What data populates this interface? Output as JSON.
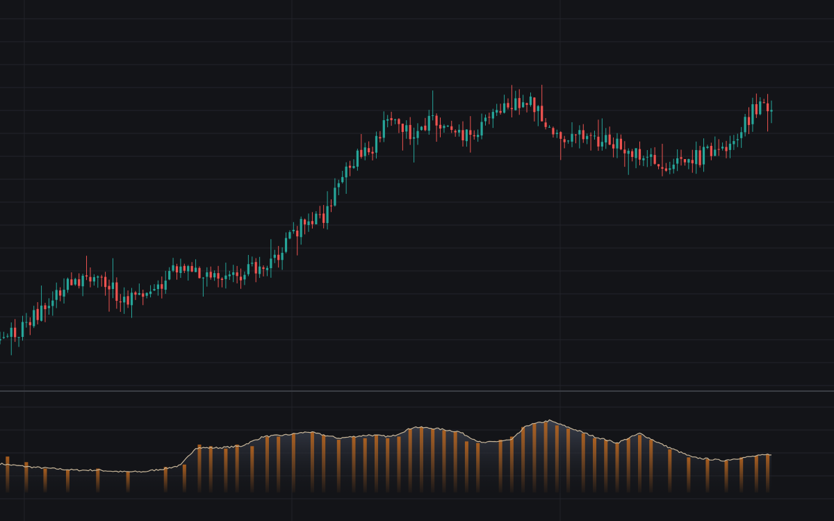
{
  "theme": {
    "background": "#131418",
    "grid": "#23252b",
    "separator": "#3a3d44",
    "up_color": "#26a69a",
    "down_color": "#ef5350",
    "indicator_line": "#c9b79a",
    "indicator_fill_top": "#3c4250",
    "indicator_fill_bottom": "#141519",
    "indicator_bar_color": "#b8651e"
  },
  "chart_data": [
    {
      "type": "candlestick",
      "title": "",
      "xlabel": "",
      "ylabel": "",
      "grid": true,
      "ylim": [
        0,
        100
      ],
      "series": [
        {
          "x_range": [
            0,
            205
          ],
          "anchors": [
            [
              0,
              4
            ],
            [
              8,
              10
            ],
            [
              14,
              18
            ],
            [
              20,
              25
            ],
            [
              26,
              27
            ],
            [
              32,
              18
            ],
            [
              38,
              19
            ],
            [
              44,
              25
            ],
            [
              48,
              30
            ],
            [
              52,
              28
            ],
            [
              56,
              27
            ],
            [
              62,
              25
            ],
            [
              68,
              30
            ],
            [
              74,
              34
            ],
            [
              80,
              44
            ],
            [
              86,
              46
            ],
            [
              92,
              66
            ],
            [
              98,
              70
            ],
            [
              104,
              82
            ],
            [
              110,
              76
            ],
            [
              116,
              82
            ],
            [
              122,
              76
            ],
            [
              128,
              78
            ],
            [
              134,
              86
            ],
            [
              140,
              88
            ],
            [
              146,
              78
            ],
            [
              152,
              75
            ],
            [
              158,
              74
            ],
            [
              164,
              74
            ],
            [
              170,
              68
            ],
            [
              176,
              65
            ],
            [
              180,
              68
            ],
            [
              186,
              68
            ],
            [
              192,
              72
            ],
            [
              196,
              76
            ],
            [
              200,
              84
            ],
            [
              204,
              86
            ],
            [
              205,
              84
            ]
          ],
          "wick_spread": 3.5,
          "body_noise": 3.0
        }
      ]
    },
    {
      "type": "area",
      "title": "",
      "xlabel": "",
      "ylabel": "",
      "grid": true,
      "ylim": [
        0,
        100
      ],
      "series": [
        {
          "x_range": [
            0,
            205
          ],
          "anchors": [
            [
              0,
              36
            ],
            [
              8,
              32
            ],
            [
              14,
              30
            ],
            [
              20,
              28
            ],
            [
              26,
              28
            ],
            [
              32,
              26
            ],
            [
              38,
              26
            ],
            [
              44,
              30
            ],
            [
              48,
              34
            ],
            [
              52,
              56
            ],
            [
              58,
              56
            ],
            [
              64,
              58
            ],
            [
              70,
              70
            ],
            [
              76,
              72
            ],
            [
              82,
              76
            ],
            [
              90,
              68
            ],
            [
              98,
              72
            ],
            [
              104,
              70
            ],
            [
              110,
              82
            ],
            [
              116,
              80
            ],
            [
              122,
              76
            ],
            [
              128,
              62
            ],
            [
              136,
              66
            ],
            [
              140,
              84
            ],
            [
              146,
              90
            ],
            [
              152,
              80
            ],
            [
              158,
              70
            ],
            [
              164,
              62
            ],
            [
              170,
              74
            ],
            [
              176,
              60
            ],
            [
              184,
              44
            ],
            [
              192,
              40
            ],
            [
              198,
              44
            ],
            [
              205,
              48
            ]
          ],
          "bars": [
            [
              2,
              45
            ],
            [
              7,
              38
            ],
            [
              12,
              30
            ],
            [
              18,
              28
            ],
            [
              26,
              30
            ],
            [
              34,
              26
            ],
            [
              44,
              32
            ],
            [
              49,
              35
            ],
            [
              53,
              60
            ],
            [
              56,
              58
            ],
            [
              60,
              55
            ],
            [
              63,
              60
            ],
            [
              67,
              58
            ],
            [
              71,
              70
            ],
            [
              74,
              70
            ],
            [
              78,
              74
            ],
            [
              83,
              76
            ],
            [
              86,
              72
            ],
            [
              90,
              66
            ],
            [
              94,
              70
            ],
            [
              97,
              68
            ],
            [
              100,
              72
            ],
            [
              103,
              68
            ],
            [
              106,
              70
            ],
            [
              109,
              80
            ],
            [
              112,
              82
            ],
            [
              115,
              80
            ],
            [
              118,
              78
            ],
            [
              121,
              76
            ],
            [
              124,
              64
            ],
            [
              127,
              62
            ],
            [
              133,
              66
            ],
            [
              136,
              70
            ],
            [
              139,
              82
            ],
            [
              142,
              86
            ],
            [
              145,
              88
            ],
            [
              148,
              84
            ],
            [
              151,
              80
            ],
            [
              155,
              74
            ],
            [
              158,
              68
            ],
            [
              161,
              66
            ],
            [
              164,
              62
            ],
            [
              167,
              68
            ],
            [
              170,
              72
            ],
            [
              173,
              66
            ],
            [
              178,
              54
            ],
            [
              183,
              44
            ],
            [
              188,
              42
            ],
            [
              193,
              40
            ],
            [
              197,
              44
            ],
            [
              201,
              46
            ],
            [
              204,
              48
            ]
          ]
        }
      ]
    }
  ]
}
